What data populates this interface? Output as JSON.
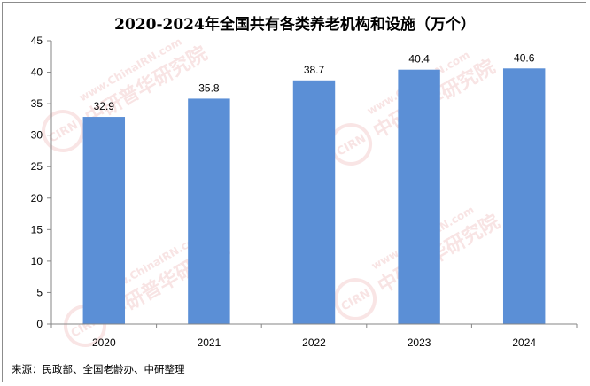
{
  "chart_data": {
    "type": "bar",
    "title": "2020-2024年全国共有各类养老机构和设施（万个）",
    "categories": [
      "2020",
      "2021",
      "2022",
      "2023",
      "2024"
    ],
    "values": [
      32.9,
      35.8,
      38.7,
      40.4,
      40.6
    ],
    "ylim": [
      0,
      45
    ],
    "yticks": [
      0,
      5,
      10,
      15,
      20,
      25,
      30,
      35,
      40,
      45
    ],
    "xlabel": "",
    "ylabel": "",
    "grid": false,
    "legend": "none",
    "bar_color": "#5b8fd6",
    "source": "来源：民政部、全国老龄办、中研整理"
  },
  "watermark": {
    "brand": "中研普华研究院",
    "url": "www.ChinaIRN.com",
    "logo": "CIRN",
    "color": "#e8a0a0"
  }
}
